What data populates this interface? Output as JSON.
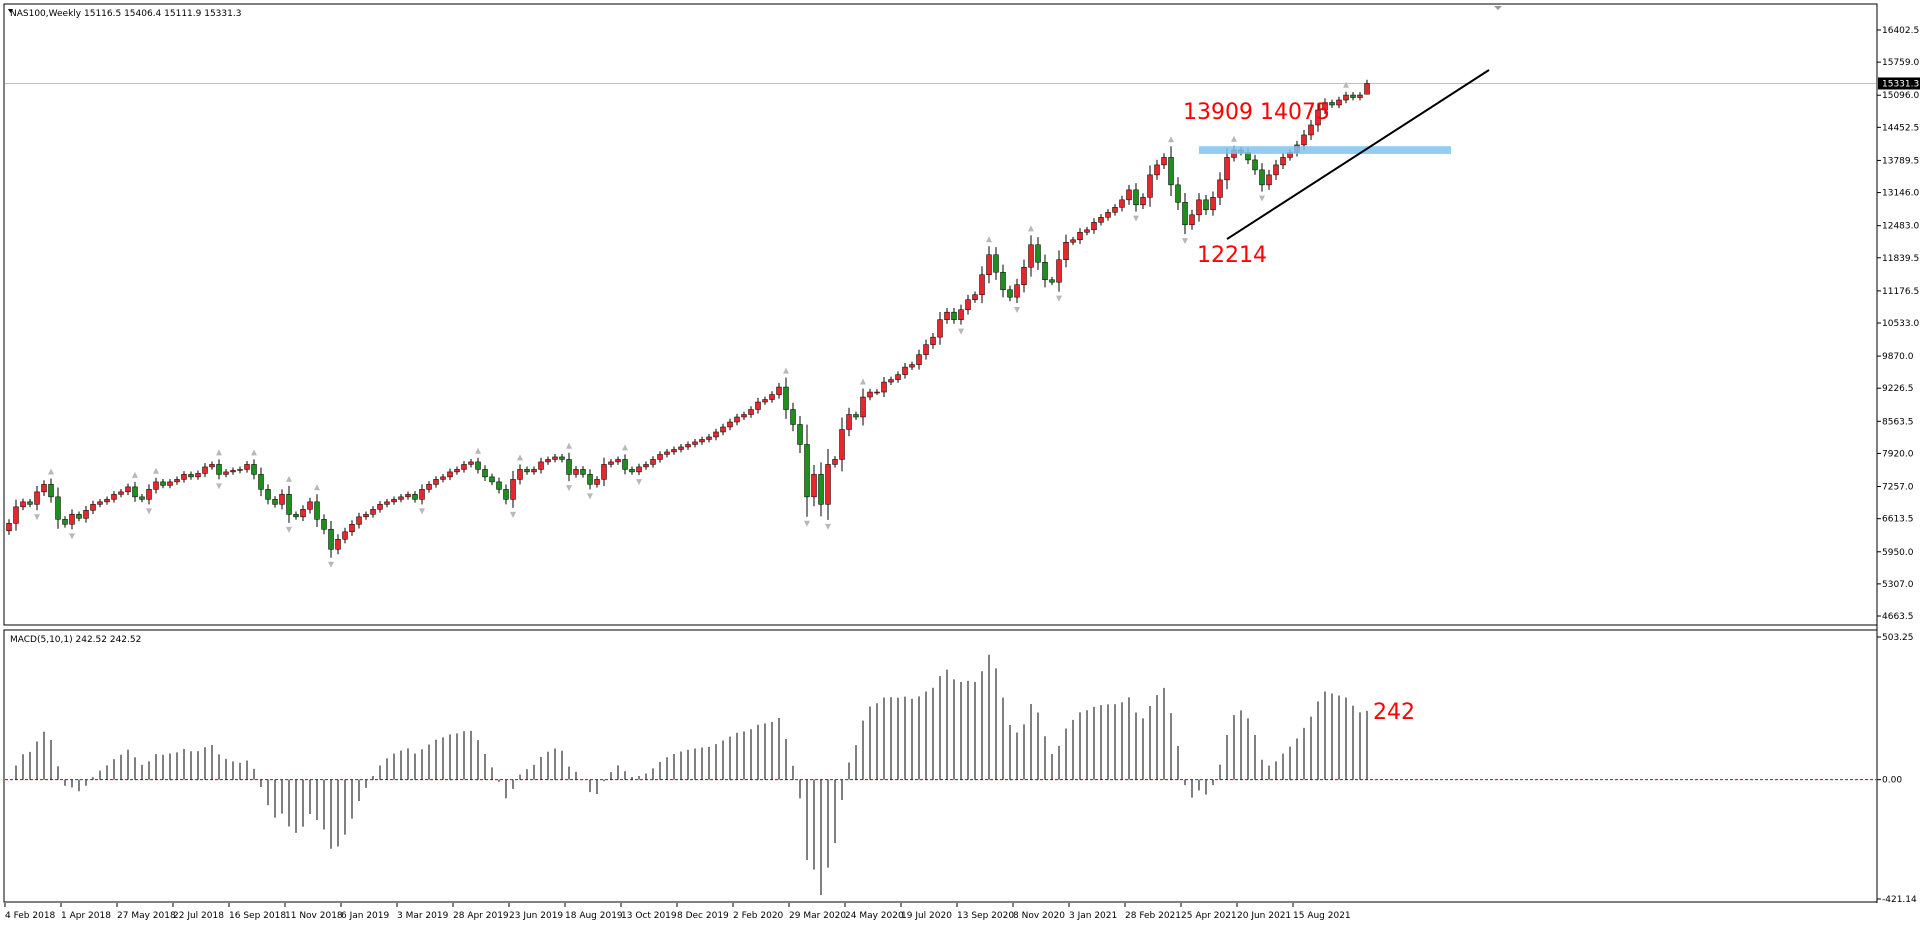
{
  "window": {
    "symbol_info": "NAS100,Weekly  15116.5 15406.4 15111.9 15331.3",
    "macd_info": "MACD(5,10,1) 242.52 242.52"
  },
  "colors": {
    "bull": "#e8262c",
    "bear": "#1d8f1d",
    "wick": "#000000",
    "trendline": "#000000",
    "zone": "#7fc4f0",
    "annotation": "#ff0000",
    "macd_hist": "#000000",
    "zero_line": "#cc0000",
    "fractal": "#b8b8b8"
  },
  "chart_data": [
    {
      "type": "candlestick",
      "title": "NAS100,Weekly",
      "ohlc_last": {
        "open": 15116.5,
        "high": 15406.4,
        "low": 15111.9,
        "close": 15331.3
      },
      "y_ticks": [
        16402.5,
        15759.0,
        15096.0,
        14452.5,
        13789.5,
        13146.0,
        12483.0,
        11839.5,
        11176.5,
        10533.0,
        9870.0,
        9226.5,
        8563.5,
        7920.0,
        7257.0,
        6613.5,
        5950.0,
        5307.0,
        4663.5
      ],
      "ylim": [
        4663.5,
        16402.5
      ],
      "current_price_label": "15331.3",
      "x_tick_labels": [
        "4 Feb 2018",
        "1 Apr 2018",
        "27 May 2018",
        "22 Jul 2018",
        "16 Sep 2018",
        "11 Nov 2018",
        "6 Jan 2019",
        "3 Mar 2019",
        "28 Apr 2019",
        "23 Jun 2019",
        "18 Aug 2019",
        "13 Oct 2019",
        "8 Dec 2019",
        "2 Feb 2020",
        "29 Mar 2020",
        "24 May 2020",
        "19 Jul 2020",
        "13 Sep 2020",
        "8 Nov 2020",
        "3 Jan 2021",
        "28 Feb 2021",
        "25 Apr 2021",
        "20 Jun 2021",
        "15 Aug 2021"
      ],
      "weeks_per_tick": 8,
      "closes": [
        6520,
        6850,
        6950,
        6900,
        7150,
        7300,
        7050,
        6600,
        6500,
        6700,
        6620,
        6780,
        6900,
        6950,
        7000,
        7100,
        7150,
        7250,
        7050,
        7000,
        7200,
        7350,
        7280,
        7350,
        7400,
        7500,
        7450,
        7520,
        7650,
        7700,
        7500,
        7550,
        7580,
        7600,
        7700,
        7500,
        7200,
        7000,
        6900,
        7100,
        6700,
        6650,
        6800,
        6950,
        6600,
        6400,
        6000,
        6200,
        6350,
        6500,
        6650,
        6700,
        6800,
        6900,
        6950,
        7000,
        7050,
        7100,
        7000,
        7200,
        7300,
        7400,
        7450,
        7550,
        7600,
        7700,
        7750,
        7600,
        7450,
        7350,
        7200,
        7000,
        7400,
        7600,
        7550,
        7600,
        7750,
        7800,
        7850,
        7800,
        7500,
        7600,
        7500,
        7300,
        7400,
        7700,
        7750,
        7800,
        7600,
        7550,
        7650,
        7700,
        7800,
        7900,
        7950,
        8000,
        8050,
        8100,
        8150,
        8200,
        8250,
        8350,
        8450,
        8550,
        8650,
        8700,
        8800,
        8950,
        9000,
        9100,
        9250,
        8800,
        8500,
        8100,
        7050,
        7500,
        6900,
        7700,
        7800,
        8400,
        8700,
        8650,
        9050,
        9150,
        9150,
        9350,
        9400,
        9500,
        9650,
        9700,
        9900,
        10100,
        10250,
        10600,
        10750,
        10600,
        10800,
        11000,
        11100,
        11500,
        11900,
        11550,
        11200,
        11050,
        11300,
        11650,
        12100,
        11750,
        11400,
        11350,
        11800,
        12150,
        12200,
        12350,
        12400,
        12550,
        12650,
        12750,
        12850,
        13000,
        13200,
        12900,
        13050,
        13500,
        13700,
        13850,
        13300,
        12950,
        12500,
        12700,
        13000,
        12800,
        13050,
        13400,
        13850,
        14000,
        13950,
        13800,
        13600,
        13300,
        13500,
        13700,
        13850,
        13950,
        14100,
        14300,
        14500,
        14800,
        14950,
        14900,
        15000,
        15100,
        15050,
        15100,
        15331.3
      ],
      "trendline": {
        "from": {
          "index": 174,
          "price": 12214
        },
        "to": {
          "index": 205,
          "price": 14900
        }
      },
      "zone": {
        "from_index": 170,
        "to_index": 206,
        "low": 13920,
        "high": 14075
      },
      "annotations": [
        {
          "text": "13909",
          "index": 172,
          "price": 14620
        },
        {
          "text": "14075",
          "index": 183,
          "price": 14620
        },
        {
          "text": "12214",
          "index": 174,
          "price": 11750
        }
      ]
    },
    {
      "type": "bar",
      "title": "MACD(5,10,1) 242.52 242.52",
      "ylim": [
        -421.14,
        503.25
      ],
      "y_ticks": [
        503.25,
        0.0,
        -421.14
      ],
      "last_value": 242.52,
      "annotation": "242",
      "note_series": "computed from closes: EMA5 - EMA10"
    }
  ]
}
